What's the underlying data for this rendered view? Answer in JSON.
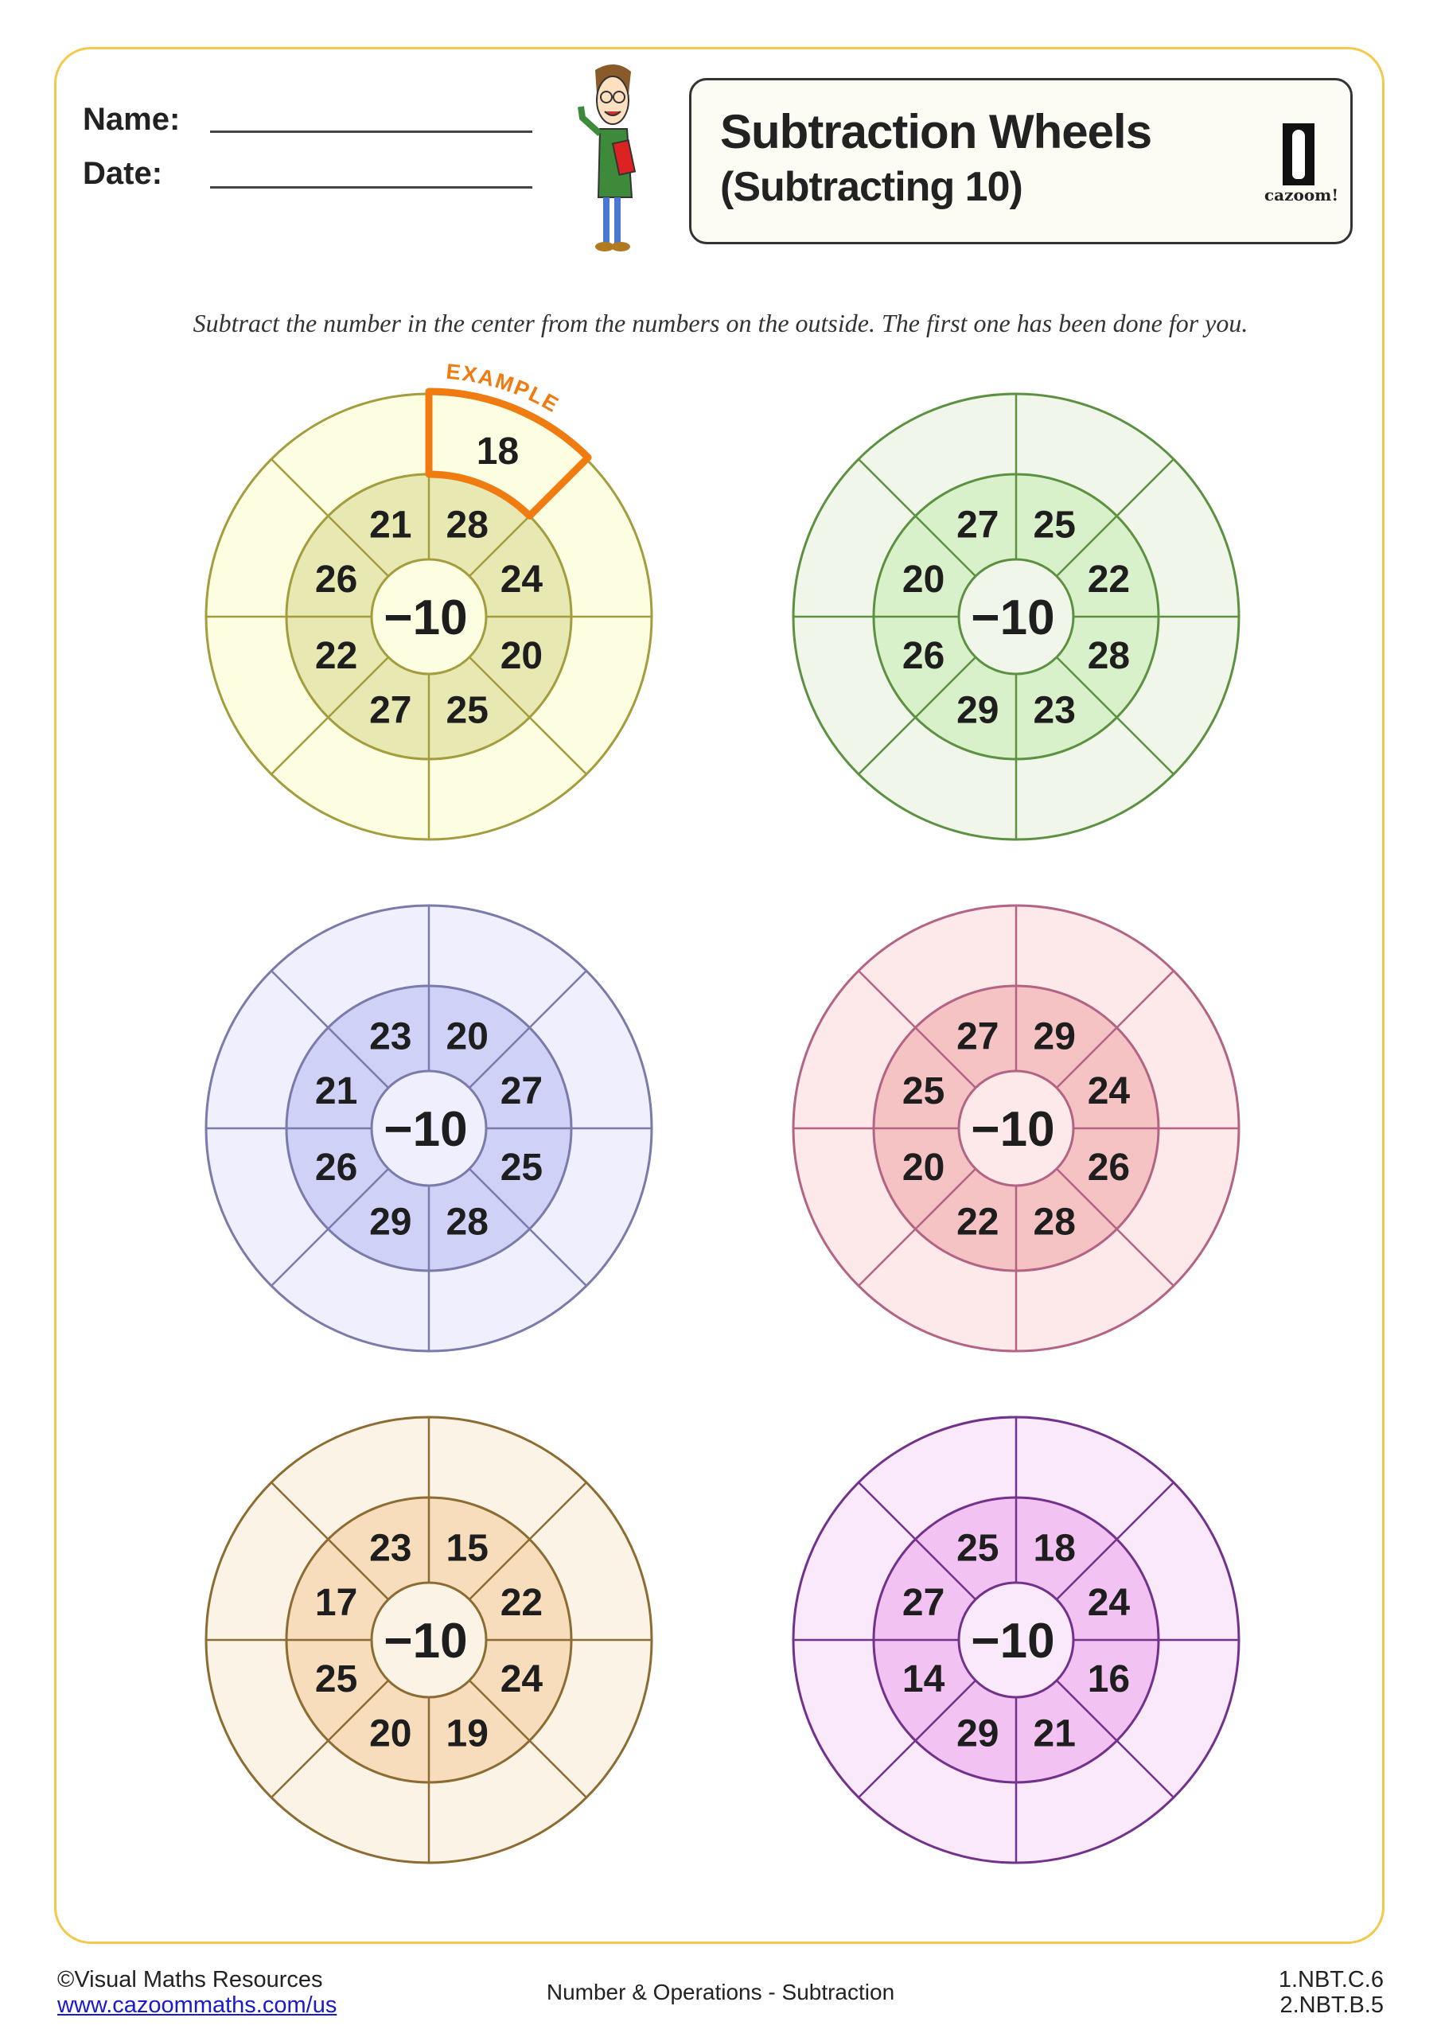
{
  "header": {
    "name_label": "Name:",
    "date_label": "Date:",
    "title": "Subtraction Wheels",
    "subtitle": "(Subtracting 10)",
    "logo_text": "cazoom!"
  },
  "instructions": "Subtract the number in the center from the numbers on the outside. The first one has been done for you.",
  "example_label": "EXAMPLE",
  "accent_color": "#f07b10",
  "frame_color": "#f2c94c",
  "wheels": [
    {
      "center": "−10",
      "numbers": [
        "28",
        "24",
        "20",
        "25",
        "27",
        "22",
        "26",
        "21"
      ],
      "answers": [
        "18",
        "",
        "",
        "",
        "",
        "",
        "",
        ""
      ],
      "colors": {
        "outer": "#fdfde2",
        "inner": "#e8e8b2",
        "stroke": "#a39d3e"
      }
    },
    {
      "center": "−10",
      "numbers": [
        "25",
        "22",
        "28",
        "23",
        "29",
        "26",
        "20",
        "27"
      ],
      "answers": [
        "",
        "",
        "",
        "",
        "",
        "",
        "",
        ""
      ],
      "colors": {
        "outer": "#f0f7ea",
        "inner": "#d9f1ca",
        "stroke": "#5d9142"
      }
    },
    {
      "center": "−10",
      "numbers": [
        "20",
        "27",
        "25",
        "28",
        "29",
        "26",
        "21",
        "23"
      ],
      "answers": [
        "",
        "",
        "",
        "",
        "",
        "",
        "",
        ""
      ],
      "colors": {
        "outer": "#efeffd",
        "inner": "#d0d1f7",
        "stroke": "#7a7aab"
      }
    },
    {
      "center": "−10",
      "numbers": [
        "29",
        "24",
        "26",
        "28",
        "22",
        "20",
        "25",
        "27"
      ],
      "answers": [
        "",
        "",
        "",
        "",
        "",
        "",
        "",
        ""
      ],
      "colors": {
        "outer": "#fde9e9",
        "inner": "#f5c3c3",
        "stroke": "#b36384"
      }
    },
    {
      "center": "−10",
      "numbers": [
        "15",
        "22",
        "24",
        "19",
        "20",
        "25",
        "17",
        "23"
      ],
      "answers": [
        "",
        "",
        "",
        "",
        "",
        "",
        "",
        ""
      ],
      "colors": {
        "outer": "#fcf3e7",
        "inner": "#f7ddbb",
        "stroke": "#8c6c32"
      }
    },
    {
      "center": "−10",
      "numbers": [
        "18",
        "24",
        "16",
        "21",
        "29",
        "14",
        "27",
        "25"
      ],
      "answers": [
        "",
        "",
        "",
        "",
        "",
        "",
        "",
        ""
      ],
      "colors": {
        "outer": "#fae9fa",
        "inner": "#f2c3f2",
        "stroke": "#72328c"
      }
    }
  ],
  "footer": {
    "copyright": "©Visual Maths Resources",
    "link": "www.cazoommaths.com/us",
    "topic": "Number & Operations - Subtraction",
    "standard_1": "1.NBT.C.6",
    "standard_2": "2.NBT.B.5"
  }
}
